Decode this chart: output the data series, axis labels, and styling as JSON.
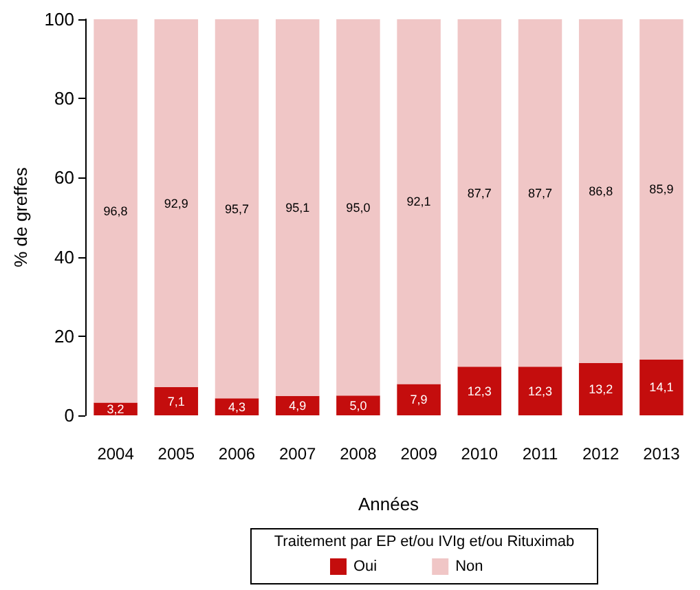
{
  "chart_data": {
    "type": "bar",
    "stacked": true,
    "xlabel": "Années",
    "ylabel": "% de greffes",
    "legend_title": "Traitement par EP et/ou IVIg et/ou Rituximab",
    "legend": "bottom",
    "grid": false,
    "categories": [
      "2004",
      "2005",
      "2006",
      "2007",
      "2008",
      "2009",
      "2010",
      "2011",
      "2012",
      "2013"
    ],
    "ylim": [
      0,
      100
    ],
    "yticks": [
      0,
      20,
      40,
      60,
      80,
      100
    ],
    "series": [
      {
        "name": "Oui",
        "color": "#c40d0d",
        "values": [
          3.2,
          7.1,
          4.3,
          4.9,
          5.0,
          7.9,
          12.3,
          12.3,
          13.2,
          14.1
        ],
        "value_labels": [
          "3,2",
          "7,1",
          "4,3",
          "4,9",
          "5,0",
          "7,9",
          "12,3",
          "12,3",
          "13,2",
          "14,1"
        ]
      },
      {
        "name": "Non",
        "color": "#f0c6c6",
        "values": [
          96.8,
          92.9,
          95.7,
          95.1,
          95.0,
          92.1,
          87.7,
          87.7,
          86.8,
          85.9
        ],
        "value_labels": [
          "96,8",
          "92,9",
          "95,7",
          "95,1",
          "95,0",
          "92,1",
          "87,7",
          "87,7",
          "86,8",
          "85,9"
        ]
      }
    ]
  }
}
